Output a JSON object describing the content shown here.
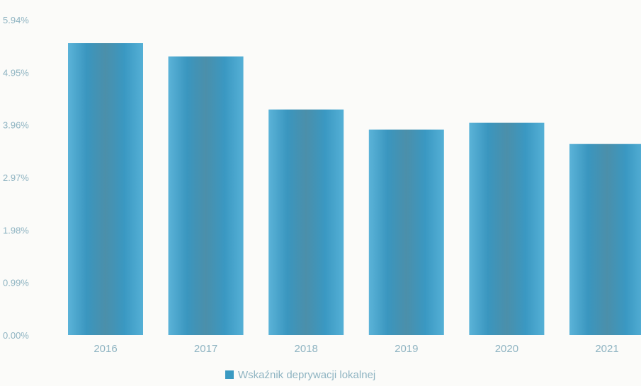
{
  "chart_data": {
    "type": "bar",
    "categories": [
      "2016",
      "2017",
      "2018",
      "2019",
      "2020",
      "2021"
    ],
    "series": [
      {
        "name": "Wskaźnik deprywacji lokalnej",
        "values": [
          5.5,
          5.25,
          4.25,
          3.87,
          4.0,
          3.6
        ],
        "color": "#3a9ac2"
      }
    ],
    "yticks": [
      "0.00%",
      "0.99%",
      "1.98%",
      "2.97%",
      "3.96%",
      "4.95%",
      "5.94%"
    ],
    "ylim": [
      0,
      5.94
    ],
    "grid": false,
    "legend": "bottom"
  }
}
